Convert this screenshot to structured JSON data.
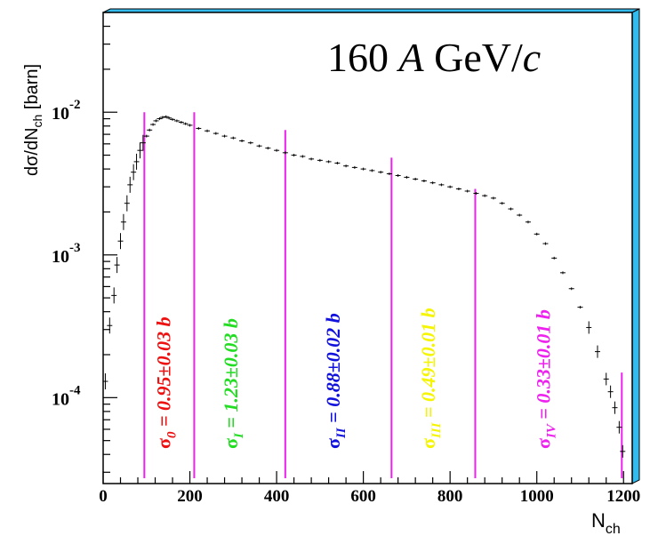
{
  "chart_data": {
    "type": "scatter",
    "title": "",
    "annotation": {
      "number": "160",
      "A": "A",
      "unit_main": "GeV/",
      "unit_c": "c"
    },
    "xlabel": {
      "main": "N",
      "sub": "ch"
    },
    "ylabel": {
      "pre": "dσ/dN",
      "sub": "ch",
      "post": " [barn]"
    },
    "x_ticks": [
      "0",
      "200",
      "400",
      "600",
      "800",
      "1000",
      "1200"
    ],
    "y_ticks": [
      {
        "value": 0.01,
        "base": "10",
        "exp": "-2"
      },
      {
        "value": 0.001,
        "base": "10",
        "exp": "-3"
      },
      {
        "value": 0.0001,
        "base": "10",
        "exp": "-4"
      }
    ],
    "xlim": [
      0,
      1220
    ],
    "ylim": [
      2.5e-05,
      0.05
    ],
    "log_y": true,
    "grid": false,
    "colors": {
      "frame_shadow": "#33bbee",
      "data": "#000000",
      "boundaries": "#ee22ee"
    },
    "series": [
      {
        "points": [
          [
            5,
            0.00013
          ],
          [
            15,
            0.00032
          ],
          [
            25,
            0.00052
          ],
          [
            32,
            0.00085
          ],
          [
            40,
            0.00125
          ],
          [
            47,
            0.0017
          ],
          [
            55,
            0.0023
          ],
          [
            62,
            0.0031
          ],
          [
            70,
            0.0038
          ],
          [
            77,
            0.0045
          ],
          [
            85,
            0.0054
          ],
          [
            92,
            0.0061
          ],
          [
            100,
            0.0068
          ],
          [
            107,
            0.0075
          ],
          [
            115,
            0.0082
          ],
          [
            122,
            0.0087
          ],
          [
            130,
            0.009
          ],
          [
            137,
            0.0092
          ],
          [
            145,
            0.0093
          ],
          [
            152,
            0.0091
          ],
          [
            160,
            0.0089
          ],
          [
            170,
            0.0087
          ],
          [
            180,
            0.0085
          ],
          [
            190,
            0.0083
          ],
          [
            200,
            0.0081
          ],
          [
            220,
            0.0077
          ],
          [
            240,
            0.0074
          ],
          [
            260,
            0.0071
          ],
          [
            280,
            0.0068
          ],
          [
            300,
            0.0066
          ],
          [
            320,
            0.0063
          ],
          [
            340,
            0.0061
          ],
          [
            360,
            0.0058
          ],
          [
            380,
            0.0056
          ],
          [
            400,
            0.0054
          ],
          [
            420,
            0.0052
          ],
          [
            440,
            0.005
          ],
          [
            460,
            0.0049
          ],
          [
            480,
            0.0047
          ],
          [
            500,
            0.0046
          ],
          [
            520,
            0.0045
          ],
          [
            540,
            0.0044
          ],
          [
            560,
            0.0042
          ],
          [
            580,
            0.0041
          ],
          [
            600,
            0.004
          ],
          [
            620,
            0.0039
          ],
          [
            640,
            0.0038
          ],
          [
            660,
            0.0037
          ],
          [
            680,
            0.0036
          ],
          [
            700,
            0.0035
          ],
          [
            720,
            0.0034
          ],
          [
            740,
            0.0033
          ],
          [
            760,
            0.0032
          ],
          [
            780,
            0.0031
          ],
          [
            800,
            0.003
          ],
          [
            820,
            0.0029
          ],
          [
            840,
            0.0028
          ],
          [
            860,
            0.0027
          ],
          [
            880,
            0.0026
          ],
          [
            900,
            0.0025
          ],
          [
            920,
            0.0023
          ],
          [
            940,
            0.0021
          ],
          [
            960,
            0.0019
          ],
          [
            980,
            0.0017
          ],
          [
            1000,
            0.0014
          ],
          [
            1020,
            0.0012
          ],
          [
            1040,
            0.00095
          ],
          [
            1060,
            0.00075
          ],
          [
            1080,
            0.00058
          ],
          [
            1100,
            0.00043
          ],
          [
            1120,
            0.00031
          ],
          [
            1140,
            0.00021
          ],
          [
            1160,
            0.000135
          ],
          [
            1170,
            0.00011
          ],
          [
            1180,
            8.5e-05
          ],
          [
            1190,
            6.2e-05
          ],
          [
            1198,
            4.2e-05
          ]
        ]
      }
    ],
    "boundaries": [
      {
        "x": 95,
        "y_top": 0.01
      },
      {
        "x": 210,
        "y_top": 0.01
      },
      {
        "x": 420,
        "y_top": 0.0075
      },
      {
        "x": 665,
        "y_top": 0.0048
      },
      {
        "x": 858,
        "y_top": 0.0029
      },
      {
        "x": 1196,
        "y_top": 0.00015
      }
    ],
    "labels": [
      {
        "sym": "σ",
        "sub": "0",
        "val": " = 0.95±0.03 b",
        "color": "#ee1111",
        "x": 155
      },
      {
        "sym": "σ",
        "sub": "I",
        "val": " = 1.23±0.03 b",
        "color": "#22dd22",
        "x": 310
      },
      {
        "sym": "σ",
        "sub": "II",
        "val": " = 0.88±0.02 b",
        "color": "#1111dd",
        "x": 545
      },
      {
        "sym": "σ",
        "sub": "III",
        "val": " = 0.49±0.01 b",
        "color": "#f5f500",
        "x": 765
      },
      {
        "sym": "σ",
        "sub": "IV",
        "val": " = 0.33±0.01 b",
        "color": "#ee22ee",
        "x": 1030
      }
    ]
  }
}
